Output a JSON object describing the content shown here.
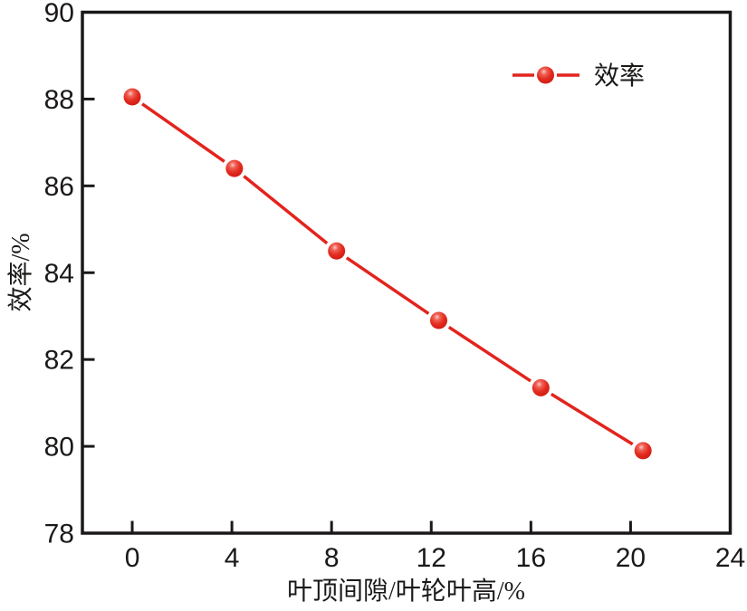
{
  "figure": {
    "background_color": "#ffffff",
    "axis_color": "#1b1918",
    "frame_width": 3.5,
    "tick_length": 12
  },
  "chart_data": {
    "type": "line",
    "title": "",
    "xlabel": "叶顶间隙/叶轮叶高/%",
    "ylabel": "效率/%",
    "xlim": [
      -2,
      24
    ],
    "ylim": [
      78,
      90
    ],
    "xticks": [
      0,
      4,
      8,
      12,
      16,
      20,
      24
    ],
    "yticks": [
      78,
      80,
      82,
      84,
      86,
      88,
      90
    ],
    "grid": false,
    "legend": {
      "label": "效率",
      "position": "top-right"
    },
    "series": [
      {
        "name": "效率",
        "line_color": "#e2241d",
        "line_width": 3.5,
        "marker": "sphere",
        "marker_radius": 9.5,
        "marker_gradient": [
          "#fcc9c1",
          "#ef6257",
          "#e42b1f",
          "#c9170e"
        ],
        "x": [
          0,
          4.1,
          8.2,
          12.3,
          16.4,
          20.5
        ],
        "y": [
          88.05,
          86.4,
          84.5,
          82.9,
          81.35,
          79.9
        ]
      }
    ]
  }
}
